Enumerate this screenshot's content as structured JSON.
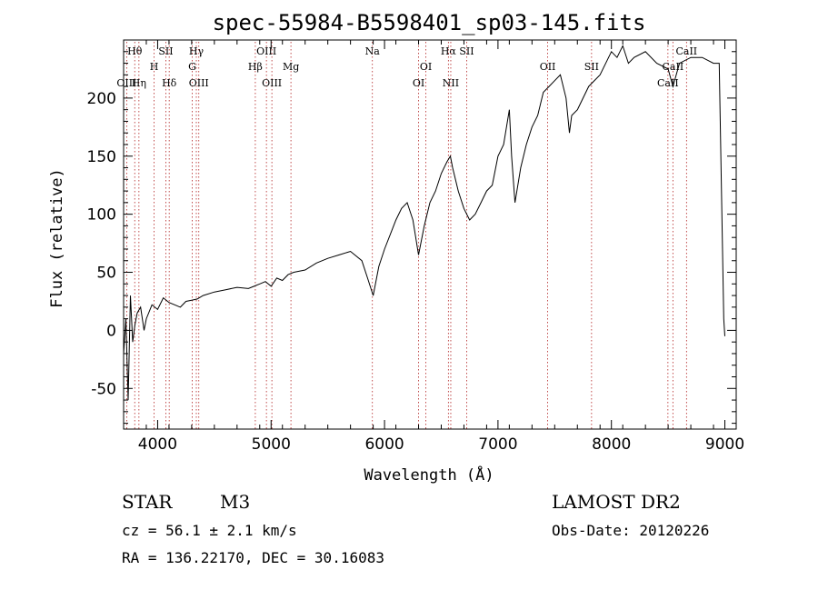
{
  "chart_data": {
    "type": "line",
    "title": "spec-55984-B5598401_sp03-145.fits",
    "xlabel": "Wavelength (Å)",
    "ylabel": "Flux (relative)",
    "xlim": [
      3700,
      9100
    ],
    "ylim": [
      -85,
      250
    ],
    "xticks": [
      4000,
      5000,
      6000,
      7000,
      8000,
      9000
    ],
    "yticks": [
      -50,
      0,
      50,
      100,
      150,
      200
    ],
    "series": [
      {
        "x": [
          3700,
          3720,
          3740,
          3760,
          3780,
          3800,
          3820,
          3850,
          3880,
          3900,
          3950,
          4000,
          4050,
          4100,
          4150,
          4200,
          4250,
          4300,
          4350,
          4400,
          4500,
          4600,
          4700,
          4800,
          4850,
          4900,
          4950,
          5000,
          5050,
          5100,
          5150,
          5200,
          5300,
          5400,
          5500,
          5600,
          5700,
          5800,
          5850,
          5900,
          5950,
          6000,
          6100,
          6150,
          6200,
          6250,
          6300,
          6350,
          6400,
          6450,
          6500,
          6550,
          6580,
          6600,
          6650,
          6700,
          6750,
          6800,
          6850,
          6900,
          6950,
          7000,
          7050,
          7100,
          7120,
          7150,
          7200,
          7250,
          7300,
          7350,
          7400,
          7450,
          7500,
          7550,
          7600,
          7630,
          7650,
          7700,
          7800,
          7900,
          8000,
          8050,
          8100,
          8150,
          8200,
          8300,
          8400,
          8500,
          8542,
          8600,
          8700,
          8800,
          8900,
          8950,
          8990,
          9000
        ],
        "y": [
          -20,
          10,
          -60,
          30,
          -10,
          5,
          15,
          20,
          0,
          10,
          22,
          18,
          28,
          24,
          22,
          20,
          25,
          26,
          27,
          30,
          33,
          35,
          37,
          36,
          38,
          40,
          42,
          38,
          45,
          43,
          48,
          50,
          52,
          58,
          62,
          65,
          68,
          60,
          45,
          30,
          55,
          70,
          95,
          105,
          110,
          95,
          65,
          90,
          110,
          120,
          135,
          145,
          150,
          140,
          120,
          105,
          95,
          100,
          110,
          120,
          125,
          150,
          160,
          190,
          150,
          110,
          140,
          160,
          175,
          185,
          205,
          210,
          215,
          220,
          200,
          170,
          185,
          190,
          210,
          220,
          240,
          235,
          245,
          230,
          235,
          240,
          230,
          225,
          210,
          230,
          235,
          235,
          230,
          230,
          10,
          -5
        ]
      }
    ],
    "spectral_lines": [
      {
        "label": "Hθ",
        "x": 3798,
        "row": 0
      },
      {
        "label": "OIII",
        "x": 3727,
        "row": 2
      },
      {
        "label": "Hη",
        "x": 3835,
        "row": 2
      },
      {
        "label": "SII",
        "x": 4072,
        "row": 0
      },
      {
        "label": "H",
        "x": 3969,
        "row": 1
      },
      {
        "label": "Hδ",
        "x": 4102,
        "row": 2
      },
      {
        "label": "Hγ",
        "x": 4341,
        "row": 0
      },
      {
        "label": "G",
        "x": 4305,
        "row": 1
      },
      {
        "label": "OIII",
        "x": 4363,
        "row": 2
      },
      {
        "label": "OIII",
        "x": 4959,
        "row": 0
      },
      {
        "label": "Hβ",
        "x": 4861,
        "row": 1
      },
      {
        "label": "OIII",
        "x": 5007,
        "row": 2
      },
      {
        "label": "Mg",
        "x": 5175,
        "row": 1
      },
      {
        "label": "Na",
        "x": 5893,
        "row": 0
      },
      {
        "label": "OI",
        "x": 6364,
        "row": 1
      },
      {
        "label": "OI",
        "x": 6300,
        "row": 2
      },
      {
        "label": "Hα",
        "x": 6563,
        "row": 0
      },
      {
        "label": "SII",
        "x": 6724,
        "row": 0
      },
      {
        "label": "NII",
        "x": 6584,
        "row": 2
      },
      {
        "label": "OII",
        "x": 7438,
        "row": 1
      },
      {
        "label": "SII",
        "x": 7825,
        "row": 1
      },
      {
        "label": "CaII",
        "x": 8662,
        "row": 0
      },
      {
        "label": "CaII",
        "x": 8542,
        "row": 1
      },
      {
        "label": "CaII",
        "x": 8498,
        "row": 2
      }
    ]
  },
  "info": {
    "object_type": "STAR",
    "subclass": "M3",
    "survey": "LAMOST DR2",
    "cz_line": "cz = 56.1 ± 2.1 km/s",
    "obs_date_line": "Obs-Date: 20120226",
    "radec_line": "RA = 136.22170, DEC =  30.16083"
  }
}
